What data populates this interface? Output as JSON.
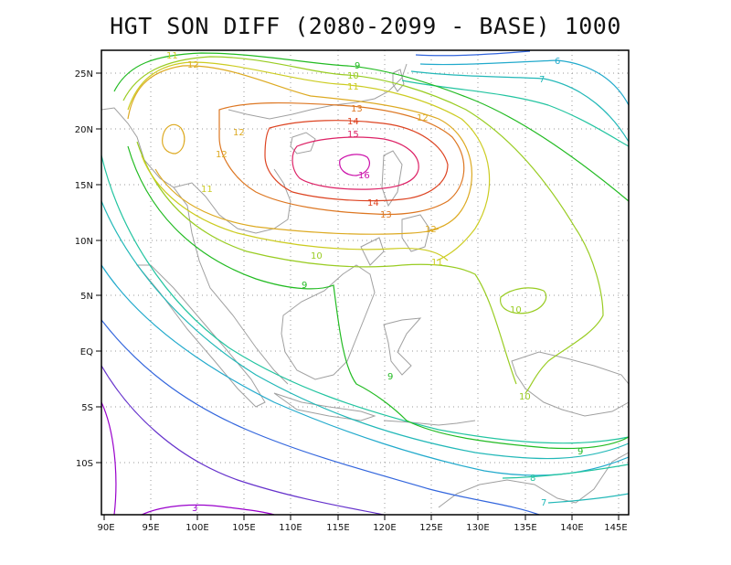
{
  "title": "HGT SON DIFF (2080-2099 - BASE) 1000",
  "x_tick_labels": [
    "90E",
    "95E",
    "100E",
    "105E",
    "110E",
    "115E",
    "120E",
    "125E",
    "130E",
    "135E",
    "140E",
    "145E"
  ],
  "y_tick_labels": [
    "25N",
    "20N",
    "15N",
    "10N",
    "5N",
    "EQ",
    "5S",
    "10S"
  ],
  "contour_labels": [
    {
      "text": "3",
      "color": "#9900cc"
    },
    {
      "text": "6",
      "color": "#22aacc"
    },
    {
      "text": "7",
      "color": "#22b8b8"
    },
    {
      "text": "8",
      "color": "#22c4a0"
    },
    {
      "text": "9",
      "color": "#22bb22"
    },
    {
      "text": "10",
      "color": "#99cc22"
    },
    {
      "text": "11",
      "color": "#cccc22"
    },
    {
      "text": "12",
      "color": "#ddaa22"
    },
    {
      "text": "13",
      "color": "#dd7722"
    },
    {
      "text": "14",
      "color": "#dd4422"
    },
    {
      "text": "15",
      "color": "#dd2266"
    },
    {
      "text": "16",
      "color": "#cc11aa"
    }
  ],
  "colors": {
    "coast": "#a0a0a0",
    "grid": "#999999",
    "frame": "#000000"
  }
}
